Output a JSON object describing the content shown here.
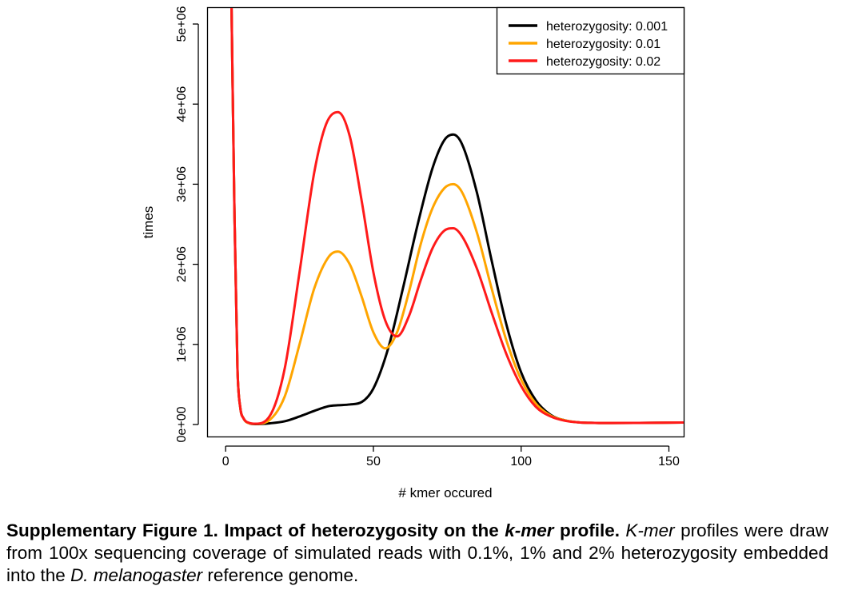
{
  "chart_data": {
    "type": "line",
    "xlabel": "# kmer occured",
    "ylabel": "times",
    "xlim": [
      -6,
      155
    ],
    "ylim": [
      -150000,
      5200000
    ],
    "xticks": [
      0,
      50,
      100,
      150
    ],
    "xtick_labels": [
      "0",
      "50",
      "100",
      "150"
    ],
    "yticks": [
      0,
      1000000,
      2000000,
      3000000,
      4000000,
      5000000
    ],
    "ytick_labels": [
      "0e+00",
      "1e+06",
      "2e+06",
      "3e+06",
      "4e+06",
      "5e+06"
    ],
    "legend_position": "top-right",
    "series": [
      {
        "name": "heterozygosity: 0.001",
        "color": "#000000",
        "x": [
          2,
          3,
          4,
          5,
          6,
          8,
          10,
          15,
          20,
          25,
          30,
          35,
          38,
          42,
          46,
          50,
          55,
          60,
          65,
          70,
          74,
          77,
          80,
          85,
          90,
          95,
          100,
          105,
          110,
          115,
          120,
          125,
          130,
          140,
          155
        ],
        "y": [
          5200000,
          2600000,
          700000,
          200000,
          80000,
          15000,
          5000,
          15000,
          40000,
          100000,
          170000,
          230000,
          240000,
          250000,
          280000,
          450000,
          950000,
          1700000,
          2500000,
          3200000,
          3550000,
          3620000,
          3500000,
          2900000,
          2050000,
          1250000,
          650000,
          300000,
          120000,
          50000,
          25000,
          20000,
          18000,
          20000,
          25000
        ]
      },
      {
        "name": "heterozygosity: 0.01",
        "color": "#FFA500",
        "x": [
          2,
          3,
          4,
          5,
          6,
          8,
          10,
          15,
          20,
          25,
          30,
          35,
          38,
          42,
          46,
          50,
          54,
          58,
          62,
          66,
          70,
          74,
          77,
          80,
          85,
          90,
          95,
          100,
          105,
          110,
          115,
          120,
          125,
          130,
          140,
          155
        ],
        "y": [
          5200000,
          2600000,
          700000,
          200000,
          80000,
          15000,
          8000,
          60000,
          350000,
          1000000,
          1700000,
          2100000,
          2160000,
          2000000,
          1600000,
          1150000,
          950000,
          1150000,
          1650000,
          2250000,
          2700000,
          2950000,
          3000000,
          2900000,
          2400000,
          1700000,
          1050000,
          560000,
          260000,
          110000,
          50000,
          25000,
          20000,
          18000,
          20000,
          25000
        ]
      },
      {
        "name": "heterozygosity: 0.02",
        "color": "#FF1A1A",
        "x": [
          2,
          3,
          4,
          5,
          6,
          8,
          10,
          15,
          20,
          25,
          30,
          34,
          38,
          42,
          46,
          50,
          54,
          58,
          62,
          66,
          70,
          74,
          77,
          80,
          85,
          90,
          95,
          100,
          105,
          110,
          115,
          120,
          125,
          130,
          140,
          155
        ],
        "y": [
          5200000,
          2600000,
          700000,
          200000,
          80000,
          20000,
          10000,
          110000,
          700000,
          1900000,
          3150000,
          3750000,
          3900000,
          3600000,
          2800000,
          1900000,
          1300000,
          1100000,
          1350000,
          1800000,
          2200000,
          2420000,
          2450000,
          2350000,
          1950000,
          1400000,
          880000,
          480000,
          220000,
          100000,
          45000,
          25000,
          20000,
          18000,
          20000,
          25000
        ]
      }
    ]
  },
  "caption": {
    "lead": "Supplementary Figure 1. Impact of heterozygosity on the ",
    "lead_italic": "k-mer",
    "lead_end": " profile.",
    "body_italic_start": " K-mer",
    "body": " profiles were draw from 100x sequencing coverage of simulated reads with 0.1%, 1% and 2% heterozygosity embedded into the ",
    "body_italic": "D. melanogaster",
    "body_end": " reference genome."
  }
}
